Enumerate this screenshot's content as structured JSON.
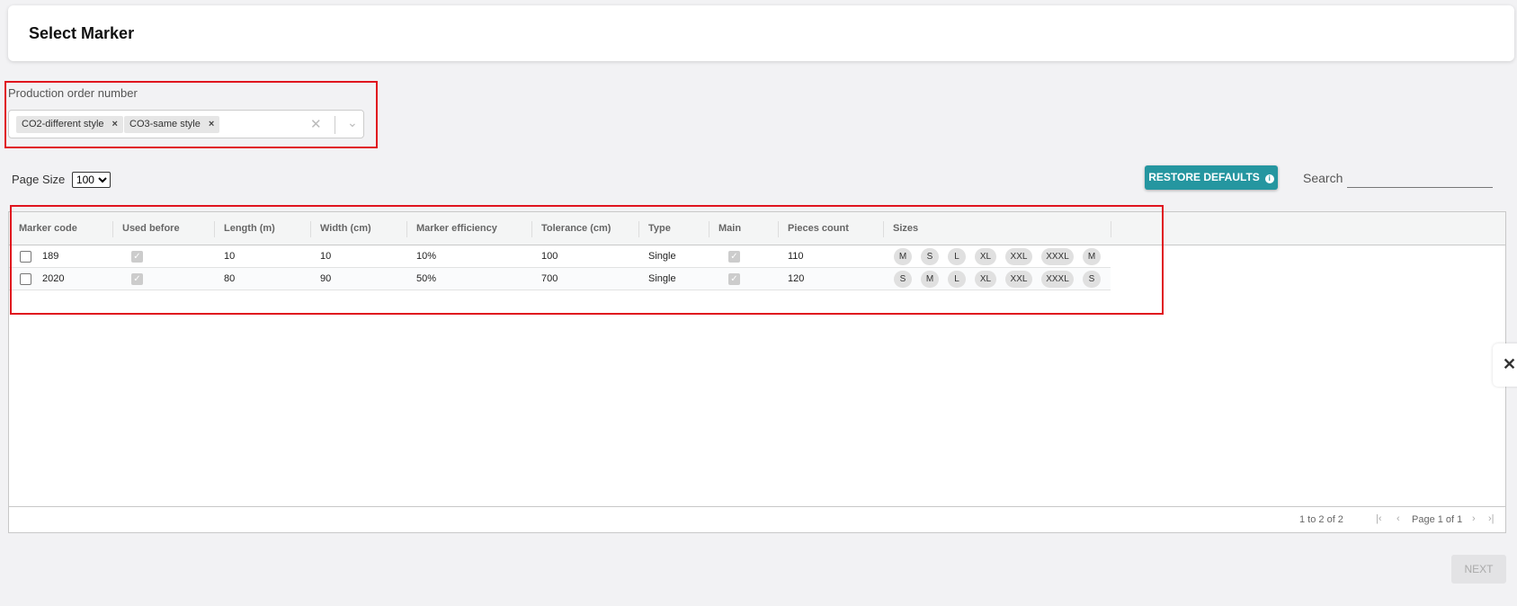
{
  "header": {
    "title": "Select Marker"
  },
  "production_order": {
    "label": "Production order number",
    "selected": [
      "CO2-different style",
      "CO3-same style"
    ],
    "remove_icon": "×",
    "clear_icon": "✕",
    "dropdown_icon": "⌄"
  },
  "page_size": {
    "label": "Page Size",
    "value": "100"
  },
  "restore_defaults": {
    "label": "RESTORE DEFAULTS",
    "icon": "info-icon"
  },
  "search": {
    "label": "Search",
    "value": ""
  },
  "table": {
    "columns": [
      "Marker code",
      "Used before",
      "Length (m)",
      "Width (cm)",
      "Marker efficiency",
      "Tolerance (cm)",
      "Type",
      "Main",
      "Pieces count",
      "Sizes"
    ],
    "rows": [
      {
        "code": "189",
        "used_before": true,
        "length": "10",
        "width": "10",
        "efficiency": "10%",
        "tolerance": "100",
        "type": "Single",
        "main": true,
        "pieces": "110",
        "sizes": [
          "M",
          "S",
          "L",
          "XL",
          "XXL",
          "XXXL",
          "M"
        ]
      },
      {
        "code": "2020",
        "used_before": true,
        "length": "80",
        "width": "90",
        "efficiency": "50%",
        "tolerance": "700",
        "type": "Single",
        "main": true,
        "pieces": "120",
        "sizes": [
          "S",
          "M",
          "L",
          "XL",
          "XXL",
          "XXXL",
          "S"
        ]
      }
    ]
  },
  "pagination": {
    "summary": "1 to 2 of 2",
    "page": "Page 1 of 1"
  },
  "next_button": {
    "label": "NEXT"
  },
  "highlight_color": "#e0141e",
  "accent": "#2596a0"
}
